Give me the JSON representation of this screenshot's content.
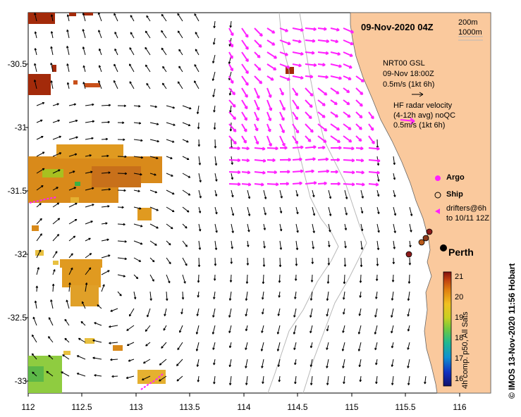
{
  "title": "09-Nov-2020 04Z",
  "credit": "© IMOS 13-Nov-2020 11:56 Hobart",
  "axes": {
    "y_ticks": [
      "-30.5",
      "-31",
      "-31.5",
      "-32",
      "-32.5",
      "-33"
    ],
    "x_ticks": [
      "112",
      "112.5",
      "113",
      "113.5",
      "114",
      "114.5",
      "115",
      "115.5",
      "116"
    ]
  },
  "bathymetry": {
    "contour_1": "200m",
    "contour_2": "1000m"
  },
  "gsl": {
    "line1": "NRT00 GSL",
    "line2": "09-Nov 18:00Z",
    "line3": "0.5m/s (1kt 6h)"
  },
  "hf_radar": {
    "line1": "HF radar velocity",
    "line2": "(4-12h avg) noQC",
    "line3": "0.5m/s (1kt 6h)"
  },
  "legend": {
    "argo": "Argo",
    "ship": "Ship",
    "drifters_line1": "drifters@6h",
    "drifters_line2": "to 10/11 12Z"
  },
  "city": "Perth",
  "colorbar": {
    "ticks": [
      "21",
      "20",
      "19",
      "18",
      "17",
      "16"
    ],
    "label": "4h comp. p50, All Sats"
  },
  "colors": {
    "land": "#FAC99D",
    "hf_arrow": "#FF22FF",
    "gsl_arrow": "#000000",
    "sst_warm": "#D98A1A",
    "sst_hot": "#A32A0A"
  }
}
